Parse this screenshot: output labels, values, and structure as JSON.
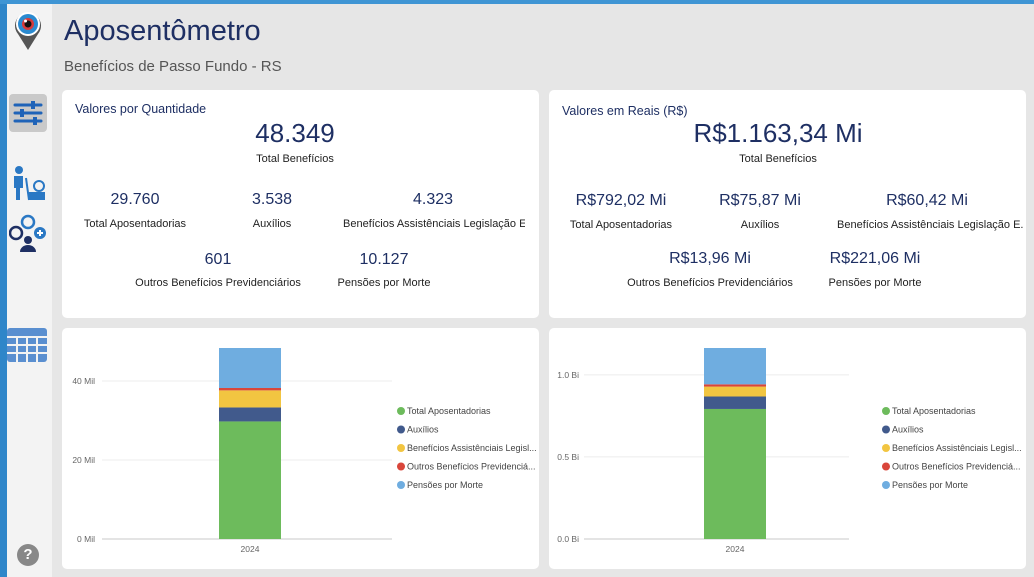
{
  "header": {
    "title": "Aposentômetro",
    "subtitle": "Benefícios de Passo Fundo - RS"
  },
  "colors": {
    "accent": "#2f86c9",
    "title": "#1e2f63",
    "aposentadorias": "#6dbb5c",
    "auxilios": "#415a8c",
    "assistenciais": "#f2c541",
    "outros": "#d9463b",
    "pensoes": "#6fade0"
  },
  "sidebar": {
    "icons": [
      "logo-eye-icon",
      "filter-sliders-icon",
      "elderly-person-icon",
      "people-network-icon",
      "calendar-table-icon",
      "help-icon"
    ],
    "help_label": "?"
  },
  "qty_card": {
    "title": "Valores por Quantidade",
    "total_value": "48.349",
    "total_label": "Total Benefícios",
    "kpis": [
      {
        "value": "29.760",
        "label": "Total Aposentadorias"
      },
      {
        "value": "3.538",
        "label": "Auxílios"
      },
      {
        "value": "4.323",
        "label": "Benefícios Assistênciais Legislação E..."
      },
      {
        "value": "601",
        "label": "Outros Benefícios Previdenciários"
      },
      {
        "value": "10.127",
        "label": "Pensões por Morte"
      }
    ]
  },
  "money_card": {
    "title": "Valores em Reais (R$)",
    "total_value": "R$1.163,34 Mi",
    "total_label": "Total Benefícios",
    "kpis": [
      {
        "value": "R$792,02 Mi",
        "label": "Total Aposentadorias"
      },
      {
        "value": "R$75,87 Mi",
        "label": "Auxílios"
      },
      {
        "value": "R$60,42 Mi",
        "label": "Benefícios Assistênciais Legislação E..."
      },
      {
        "value": "R$13,96 Mi",
        "label": "Outros Benefícios Previdenciários"
      },
      {
        "value": "R$221,06 Mi",
        "label": "Pensões por Morte"
      }
    ]
  },
  "chart_data": [
    {
      "type": "bar",
      "stacked": true,
      "categories": [
        "2024"
      ],
      "series": [
        {
          "name": "Total Aposentadorias",
          "values": [
            29760
          ]
        },
        {
          "name": "Auxílios",
          "values": [
            3538
          ]
        },
        {
          "name": "Benefícios Assistênciais Legisl...",
          "values": [
            4323
          ]
        },
        {
          "name": "Outros Benefícios Previdenciá...",
          "values": [
            601
          ]
        },
        {
          "name": "Pensões por Morte",
          "values": [
            10127
          ]
        }
      ],
      "yticks": [
        "0 Mil",
        "20 Mil",
        "40 Mil"
      ],
      "ytick_values": [
        0,
        20000,
        40000
      ],
      "ylim": [
        0,
        48349
      ],
      "legend_position": "right"
    },
    {
      "type": "bar",
      "stacked": true,
      "categories": [
        "2024"
      ],
      "series": [
        {
          "name": "Total Aposentadorias",
          "values": [
            792.02
          ]
        },
        {
          "name": "Auxílios",
          "values": [
            75.87
          ]
        },
        {
          "name": "Benefícios Assistênciais Legisl...",
          "values": [
            60.42
          ]
        },
        {
          "name": "Outros Benefícios Previdenciá...",
          "values": [
            13.96
          ]
        },
        {
          "name": "Pensões por Morte",
          "values": [
            221.06
          ]
        }
      ],
      "yticks": [
        "0.0 Bi",
        "0.5 Bi",
        "1.0 Bi"
      ],
      "ytick_values": [
        0,
        500,
        1000
      ],
      "ylim": [
        0,
        1163.34
      ],
      "legend_position": "right"
    }
  ]
}
